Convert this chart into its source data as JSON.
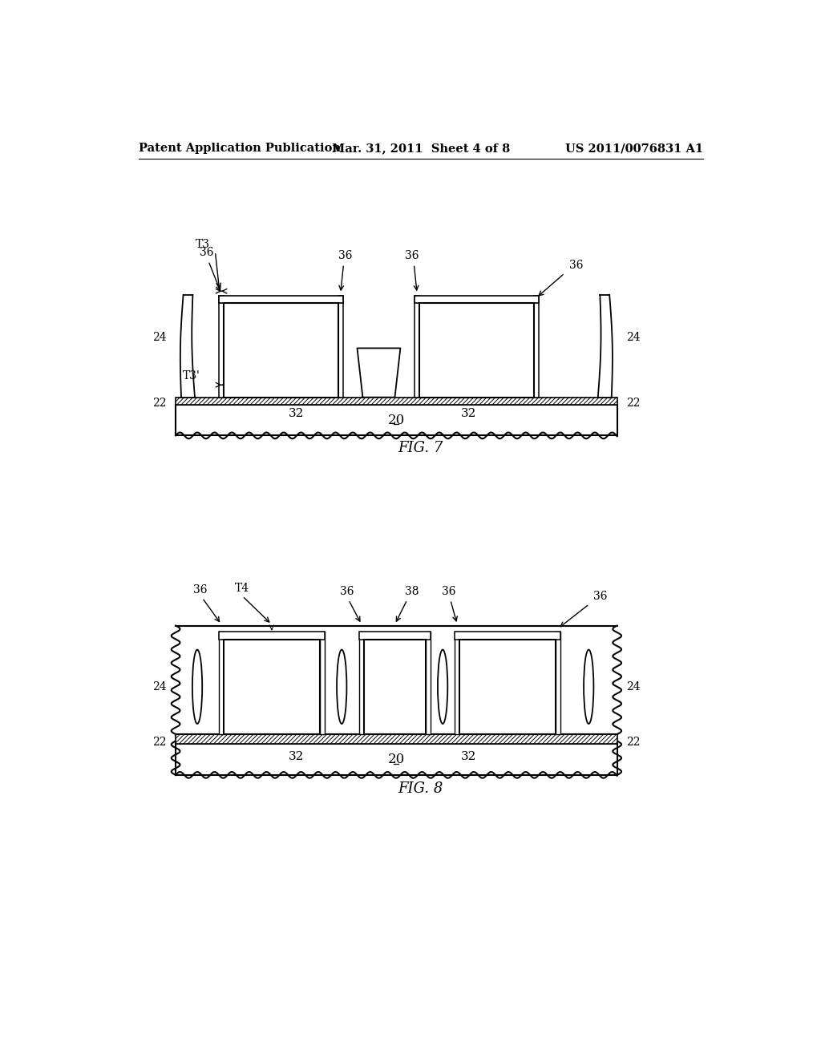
{
  "header_left": "Patent Application Publication",
  "header_center": "Mar. 31, 2011  Sheet 4 of 8",
  "header_right": "US 2011/0076831 A1",
  "fig7_label": "FIG. 7",
  "fig8_label": "FIG. 8",
  "bg_color": "#ffffff"
}
